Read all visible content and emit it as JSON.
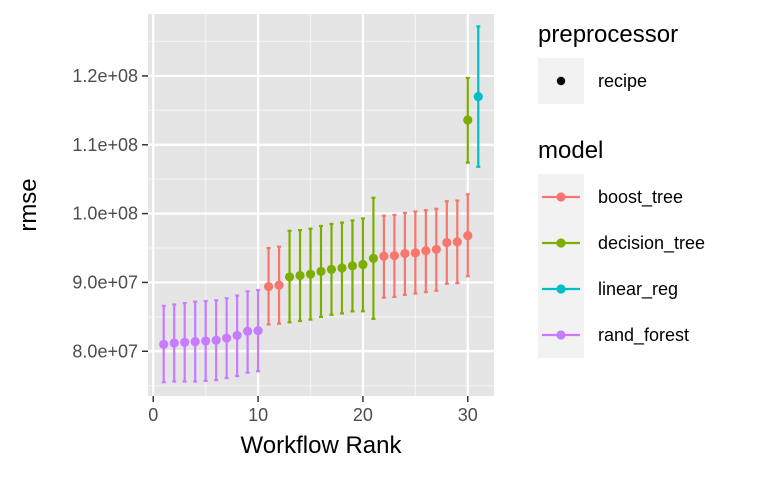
{
  "chart_data": {
    "type": "scatter",
    "xlabel": "Workflow Rank",
    "ylabel": "rmse",
    "xlim": [
      -0.5,
      32.5
    ],
    "ylim": [
      73500000.0,
      129000000.0
    ],
    "x_ticks": [
      0,
      10,
      20,
      30
    ],
    "x_tick_labels": [
      "0",
      "10",
      "20",
      "30"
    ],
    "y_ticks": [
      80000000.0,
      90000000.0,
      100000000.0,
      110000000.0,
      120000000.0
    ],
    "y_tick_labels": [
      "8.0e+07",
      "9.0e+07",
      "1.0e+08",
      "1.1e+08",
      "1.2e+08"
    ],
    "panel_background": "#e5e5e5",
    "grid": true,
    "legend_position": "right",
    "legends": [
      {
        "title": "preprocessor",
        "items": [
          {
            "label": "recipe",
            "color": "#000000"
          }
        ]
      },
      {
        "title": "model",
        "items": [
          {
            "label": "boost_tree",
            "color": "#F8766D"
          },
          {
            "label": "decision_tree",
            "color": "#7CAE00"
          },
          {
            "label": "linear_reg",
            "color": "#00BFC4"
          },
          {
            "label": "rand_forest",
            "color": "#C77CFF"
          }
        ]
      }
    ],
    "series": [
      {
        "name": "rand_forest",
        "color": "#C77CFF",
        "points": [
          {
            "x": 1,
            "y": 81000000.0,
            "lower": 75500000.0,
            "upper": 86600000.0
          },
          {
            "x": 2,
            "y": 81200000.0,
            "lower": 75600000.0,
            "upper": 86800000.0
          },
          {
            "x": 3,
            "y": 81300000.0,
            "lower": 75600000.0,
            "upper": 87000000.0
          },
          {
            "x": 4,
            "y": 81400000.0,
            "lower": 75600000.0,
            "upper": 87200000.0
          },
          {
            "x": 5,
            "y": 81500000.0,
            "lower": 75700000.0,
            "upper": 87300000.0
          },
          {
            "x": 6,
            "y": 81600000.0,
            "lower": 75800000.0,
            "upper": 87400000.0
          },
          {
            "x": 7,
            "y": 81900000.0,
            "lower": 76100000.0,
            "upper": 87700000.0
          },
          {
            "x": 8,
            "y": 82300000.0,
            "lower": 76400000.0,
            "upper": 88100000.0
          },
          {
            "x": 9,
            "y": 82900000.0,
            "lower": 76900000.0,
            "upper": 88700000.0
          },
          {
            "x": 10,
            "y": 83000000.0,
            "lower": 77100000.0,
            "upper": 88900000.0
          }
        ]
      },
      {
        "name": "boost_tree",
        "color": "#F8766D",
        "points": [
          {
            "x": 11,
            "y": 89400000.0,
            "lower": 83900000.0,
            "upper": 95000000.0
          },
          {
            "x": 12,
            "y": 89600000.0,
            "lower": 84000000.0,
            "upper": 95200000.0
          },
          {
            "x": 22,
            "y": 93800000.0,
            "lower": 87800000.0,
            "upper": 99700000.0
          },
          {
            "x": 23,
            "y": 93900000.0,
            "lower": 87900000.0,
            "upper": 99800000.0
          },
          {
            "x": 24,
            "y": 94200000.0,
            "lower": 88200000.0,
            "upper": 100100000.0
          },
          {
            "x": 25,
            "y": 94300000.0,
            "lower": 88400000.0,
            "upper": 100300000.0
          },
          {
            "x": 26,
            "y": 94600000.0,
            "lower": 88600000.0,
            "upper": 100500000.0
          },
          {
            "x": 27,
            "y": 94800000.0,
            "lower": 88800000.0,
            "upper": 100700000.0
          },
          {
            "x": 28,
            "y": 95800000.0,
            "lower": 89800000.0,
            "upper": 101800000.0
          },
          {
            "x": 29,
            "y": 95900000.0,
            "lower": 89900000.0,
            "upper": 101900000.0
          },
          {
            "x": 30,
            "y": 96800000.0,
            "lower": 90900000.0,
            "upper": 102800000.0
          }
        ]
      },
      {
        "name": "decision_tree",
        "color": "#7CAE00",
        "points": [
          {
            "x": 13,
            "y": 90800000.0,
            "lower": 84200000.0,
            "upper": 97500000.0
          },
          {
            "x": 14,
            "y": 91000000.0,
            "lower": 84400000.0,
            "upper": 97600000.0
          },
          {
            "x": 15,
            "y": 91200000.0,
            "lower": 84600000.0,
            "upper": 97800000.0
          },
          {
            "x": 16,
            "y": 91600000.0,
            "lower": 85000000.0,
            "upper": 98200000.0
          },
          {
            "x": 17,
            "y": 91900000.0,
            "lower": 85300000.0,
            "upper": 98500000.0
          },
          {
            "x": 18,
            "y": 92100000.0,
            "lower": 85500000.0,
            "upper": 98700000.0
          },
          {
            "x": 19,
            "y": 92400000.0,
            "lower": 85800000.0,
            "upper": 99000000.0
          },
          {
            "x": 20,
            "y": 92600000.0,
            "lower": 85800000.0,
            "upper": 99300000.0
          },
          {
            "x": 21,
            "y": 93500000.0,
            "lower": 84700000.0,
            "upper": 102300000.0
          },
          {
            "x": 30,
            "y": 113600000.0,
            "lower": 107400000.0,
            "upper": 119700000.0
          }
        ]
      },
      {
        "name": "linear_reg",
        "color": "#00BFC4",
        "points": [
          {
            "x": 31,
            "y": 117000000.0,
            "lower": 106800000.0,
            "upper": 127200000.0
          }
        ]
      }
    ]
  }
}
